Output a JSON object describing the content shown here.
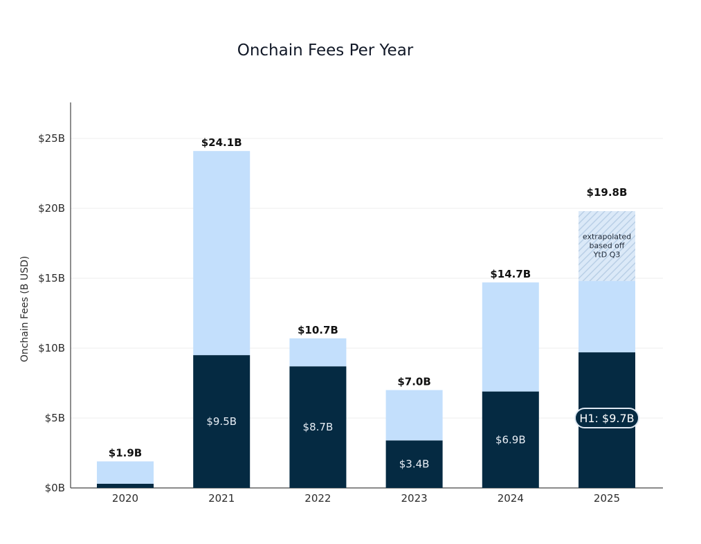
{
  "chart_data": {
    "type": "bar",
    "title": "Onchain Fees Per Year",
    "xlabel": "",
    "ylabel": "Onchain Fees (B USD)",
    "ylim": [
      0,
      27.5
    ],
    "yticks": [
      0,
      5,
      10,
      15,
      20,
      25
    ],
    "ytick_labels": [
      "$0B",
      "$5B",
      "$10B",
      "$15B",
      "$20B",
      "$25B"
    ],
    "grid": true,
    "categories": [
      "2020",
      "2021",
      "2022",
      "2023",
      "2024",
      "2025"
    ],
    "series": [
      {
        "values": [
          0.3,
          9.5,
          8.7,
          3.4,
          6.9,
          9.7
        ]
      },
      {
        "values": [
          1.6,
          14.6,
          2.0,
          3.6,
          7.8,
          5.1
        ]
      },
      {
        "values": [
          0,
          0,
          0,
          0,
          0,
          5.0
        ]
      }
    ],
    "totals": [
      1.9,
      24.1,
      10.7,
      7.0,
      14.7,
      19.8
    ],
    "total_labels": [
      "$1.9B",
      "$24.1B",
      "$10.7B",
      "$7.0B",
      "$14.7B",
      "$19.8B"
    ],
    "inner_labels": [
      "",
      "$9.5B",
      "$8.7B",
      "$3.4B",
      "$6.9B",
      ""
    ],
    "annotations": {
      "extrapolated_lines": [
        "extrapolated",
        "based off",
        "YtD Q3"
      ],
      "h1_callout": "H1: $9.7B"
    },
    "colors": {
      "dark": "#052a42",
      "light": "#c3dffc",
      "hatch": "#b9cfe6",
      "grid": "#ececec",
      "axis": "#444444"
    }
  }
}
